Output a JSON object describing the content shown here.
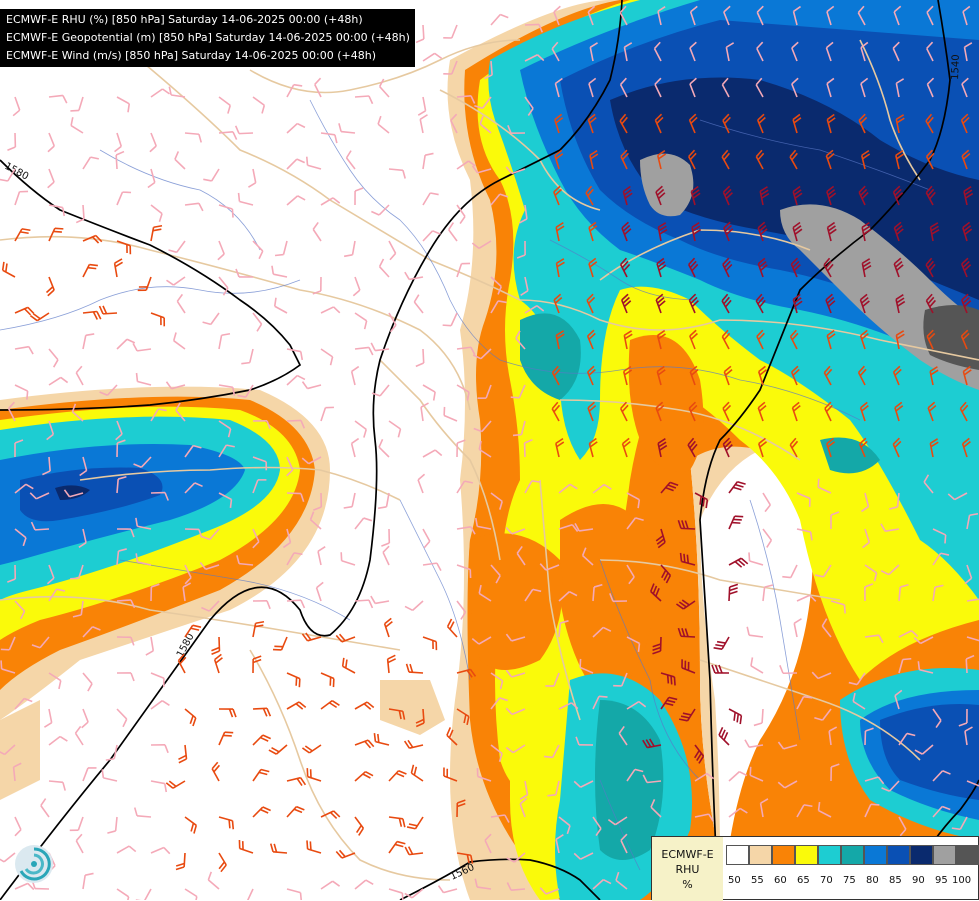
{
  "titles": [
    "ECMWF-E RHU (%) [850 hPa] Saturday 14-06-2025 00:00 (+48h)",
    "ECMWF-E Geopotential (m) [850 hPa] Saturday 14-06-2025 00:00 (+48h)",
    "ECMWF-E Wind (m/s) [850 hPa] Saturday 14-06-2025 00:00 (+48h)"
  ],
  "legend": {
    "label_lines": [
      "ECMWF-E",
      "RHU",
      "%"
    ],
    "colors": [
      "#ffffff",
      "#f5d6a8",
      "#f98306",
      "#fafa0a",
      "#1dcdd2",
      "#14a8a8",
      "#0a78d6",
      "#0a50b4",
      "#0a2a6e",
      "#a0a0a0",
      "#555555"
    ],
    "ticks": [
      "50",
      "55",
      "60",
      "65",
      "70",
      "75",
      "80",
      "85",
      "90",
      "95",
      "100"
    ]
  },
  "contour_labels": [
    "1580",
    "1580",
    "1540",
    "1560"
  ],
  "colors": {
    "border": "#e6c9a0",
    "river": "#5a78c8",
    "geopotential": "#000000",
    "wind_light": "#f4a9b8",
    "wind_medium": "#e84a10",
    "wind_strong": "#a0102a"
  },
  "icons": {
    "logo": "ecmwf-swirl-logo-icon"
  }
}
